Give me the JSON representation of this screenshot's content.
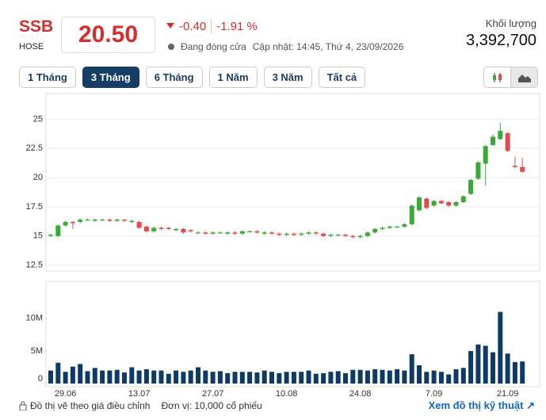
{
  "header": {
    "symbol": "SSB",
    "exchange": "HOSE",
    "price": "20.50",
    "change": "-0.40",
    "change_pct": "-1.91 %",
    "status": "Đang đóng cửa",
    "updated": "Cập nhật: 14:45, Thứ 4, 23/09/2026",
    "volume_label": "Khối lượng",
    "volume": "3,392,700"
  },
  "buttons": [
    "1 Tháng",
    "3 Tháng",
    "6 Tháng",
    "1 Năm",
    "3 Năm",
    "Tất cả"
  ],
  "footer": {
    "note": "Đồ thị vẽ theo giá điều chỉnh",
    "unit": "Đơn vị: 10,000 cổ phiếu",
    "link": "Xem đồ thị kỹ thuật"
  },
  "chart_data": [
    {
      "type": "candlestick",
      "categories": [
        null,
        null,
        "29.06",
        null,
        null,
        null,
        null,
        null,
        null,
        null,
        null,
        null,
        "13.07",
        null,
        null,
        null,
        null,
        null,
        null,
        null,
        null,
        null,
        "27.07",
        null,
        null,
        null,
        null,
        null,
        null,
        null,
        null,
        null,
        "10.08",
        null,
        null,
        null,
        null,
        null,
        null,
        null,
        null,
        null,
        "24.08",
        null,
        null,
        null,
        null,
        null,
        null,
        null,
        null,
        null,
        "7.09",
        null,
        null,
        null,
        null,
        null,
        null,
        null,
        null,
        null,
        "21.09",
        null,
        null
      ],
      "open": [
        15.0,
        15.0,
        15.9,
        16.2,
        16.2,
        16.4,
        16.3,
        16.4,
        16.4,
        16.3,
        16.4,
        16.2,
        16.2,
        15.8,
        15.4,
        15.7,
        15.7,
        15.5,
        15.6,
        15.5,
        15.3,
        15.3,
        15.2,
        15.3,
        15.2,
        15.3,
        15.2,
        15.4,
        15.4,
        15.2,
        15.3,
        15.2,
        15.1,
        15.2,
        15.1,
        15.2,
        15.3,
        15.2,
        15.0,
        15.1,
        15.1,
        15.0,
        14.9,
        15.0,
        15.3,
        15.6,
        15.7,
        15.8,
        15.8,
        16.0,
        17.2,
        18.2,
        17.6,
        18.0,
        17.9,
        17.6,
        17.9,
        18.6,
        19.9,
        21.2,
        22.8,
        23.3,
        23.8,
        21.0,
        20.9
      ],
      "high": [
        15.2,
        16.0,
        16.3,
        16.3,
        16.5,
        16.5,
        16.5,
        16.5,
        16.5,
        16.5,
        16.4,
        16.4,
        16.3,
        15.9,
        15.8,
        15.8,
        15.8,
        15.7,
        15.7,
        15.6,
        15.4,
        15.4,
        15.4,
        15.4,
        15.4,
        15.4,
        15.5,
        15.5,
        15.5,
        15.4,
        15.4,
        15.3,
        15.3,
        15.3,
        15.3,
        15.4,
        15.4,
        15.3,
        15.2,
        15.2,
        15.2,
        15.1,
        15.1,
        15.4,
        15.7,
        15.8,
        15.9,
        15.9,
        16.1,
        17.7,
        18.4,
        18.3,
        18.1,
        18.1,
        18.0,
        18.0,
        18.5,
        19.9,
        21.4,
        22.8,
        23.7,
        24.7,
        23.9,
        21.8,
        21.7
      ],
      "low": [
        14.9,
        14.9,
        15.8,
        15.6,
        16.1,
        16.3,
        16.2,
        16.3,
        16.2,
        16.2,
        16.2,
        16.1,
        15.6,
        15.3,
        15.3,
        15.5,
        15.5,
        15.4,
        15.2,
        15.3,
        15.2,
        15.1,
        15.1,
        15.2,
        15.1,
        15.1,
        15.1,
        15.3,
        15.2,
        15.1,
        15.1,
        15.0,
        15.0,
        15.0,
        15.0,
        15.1,
        15.1,
        14.9,
        14.9,
        15.0,
        14.9,
        14.8,
        14.8,
        14.9,
        15.2,
        15.5,
        15.6,
        15.7,
        15.7,
        15.9,
        17.1,
        17.3,
        17.5,
        17.7,
        17.5,
        17.5,
        17.8,
        18.5,
        19.8,
        19.3,
        22.7,
        23.2,
        22.2,
        20.8,
        20.4
      ],
      "close": [
        15.1,
        15.9,
        16.2,
        16.1,
        16.4,
        16.4,
        16.4,
        16.4,
        16.3,
        16.4,
        16.3,
        16.3,
        15.7,
        15.4,
        15.7,
        15.6,
        15.6,
        15.6,
        15.3,
        15.4,
        15.3,
        15.2,
        15.3,
        15.3,
        15.3,
        15.2,
        15.4,
        15.4,
        15.3,
        15.3,
        15.2,
        15.1,
        15.2,
        15.1,
        15.2,
        15.3,
        15.2,
        15.0,
        15.1,
        15.1,
        15.0,
        14.9,
        15.0,
        15.3,
        15.6,
        15.7,
        15.8,
        15.8,
        16.0,
        17.6,
        18.3,
        17.4,
        18.0,
        17.8,
        17.6,
        17.9,
        18.4,
        19.8,
        21.3,
        22.7,
        23.5,
        24.0,
        22.3,
        20.9,
        20.5
      ],
      "up_color": "#3aa935",
      "down_color": "#e5484d",
      "ylim": [
        12,
        27.2
      ],
      "yticks": [
        12.5,
        15,
        17.5,
        20,
        22.5,
        25
      ],
      "grid": true
    },
    {
      "type": "bar",
      "values": [
        2.0,
        3.2,
        1.8,
        2.6,
        3.0,
        1.9,
        2.4,
        2.0,
        2.0,
        2.1,
        1.7,
        2.5,
        2.0,
        2.2,
        2.0,
        2.0,
        1.5,
        2.0,
        1.8,
        2.0,
        2.5,
        2.0,
        1.8,
        1.9,
        1.6,
        1.8,
        1.8,
        1.8,
        1.7,
        2.0,
        1.8,
        1.6,
        1.8,
        1.8,
        1.8,
        2.0,
        1.5,
        1.6,
        1.8,
        1.9,
        1.6,
        2.1,
        2.1,
        2.0,
        2.2,
        2.1,
        2.0,
        2.2,
        2.0,
        4.5,
        2.8,
        1.8,
        2.0,
        1.8,
        1.4,
        2.2,
        2.4,
        5.0,
        6.0,
        5.8,
        4.8,
        11.0,
        4.6,
        3.3,
        3.39
      ],
      "color": "#0d3b66",
      "ylim": [
        0,
        15.7
      ],
      "yticks": [
        0,
        {
          "value": 5,
          "label": "5M"
        },
        {
          "value": 10,
          "label": "10M"
        }
      ]
    }
  ]
}
